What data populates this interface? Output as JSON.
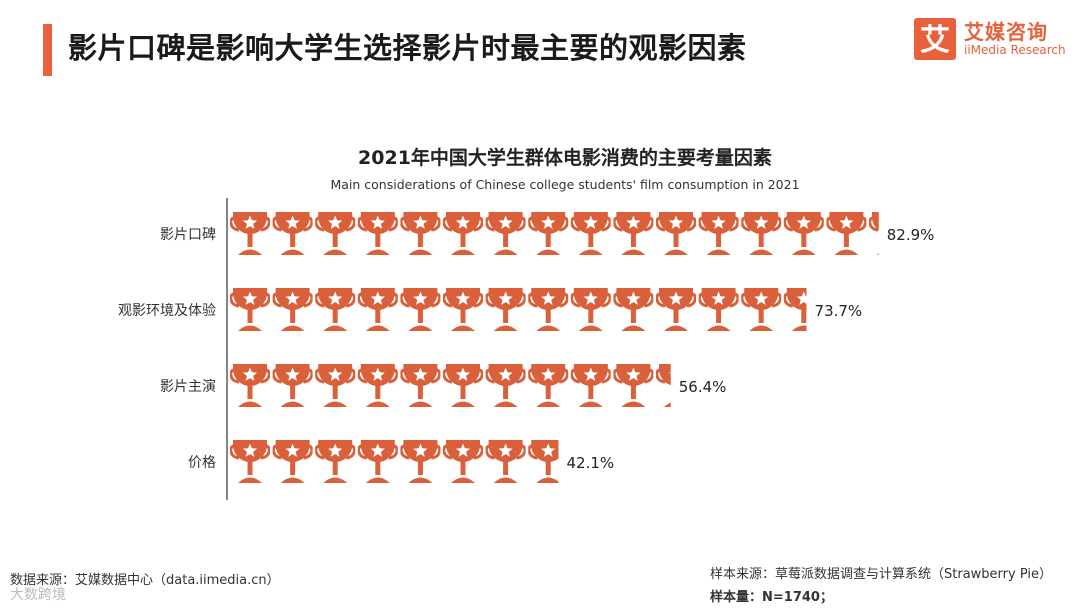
{
  "header": {
    "title": "影片口碑是影响大学生选择影片时最主要的观影因素",
    "logo_cn": "艾媒咨询",
    "logo_en": "iiMedia Research",
    "logo_glyph": "艾",
    "accent_color": "#E8603C"
  },
  "chart_data": {
    "type": "bar",
    "title": "2021年中国大学生群体电影消费的主要考量因素",
    "subtitle": "Main considerations of Chinese college students' film consumption in 2021",
    "categories": [
      "影片口碑",
      "观影环境及体验",
      "影片主演",
      "价格"
    ],
    "values": [
      82.9,
      73.7,
      56.4,
      42.1
    ],
    "value_labels": [
      "82.9%",
      "73.7%",
      "56.4%",
      "42.1%"
    ],
    "unit": "%",
    "orientation": "horizontal",
    "marker": "trophy-icon",
    "bar_color": "#D9603B",
    "grid": false,
    "legend": "none"
  },
  "footer": {
    "source": "数据来源：艾媒数据中心（data.iimedia.cn）",
    "sample_source": "样本来源：草莓派数据调查与计算系统（Strawberry Pie）",
    "sample_size": "样本量：N=1740；",
    "watermark": "大数跨境"
  }
}
